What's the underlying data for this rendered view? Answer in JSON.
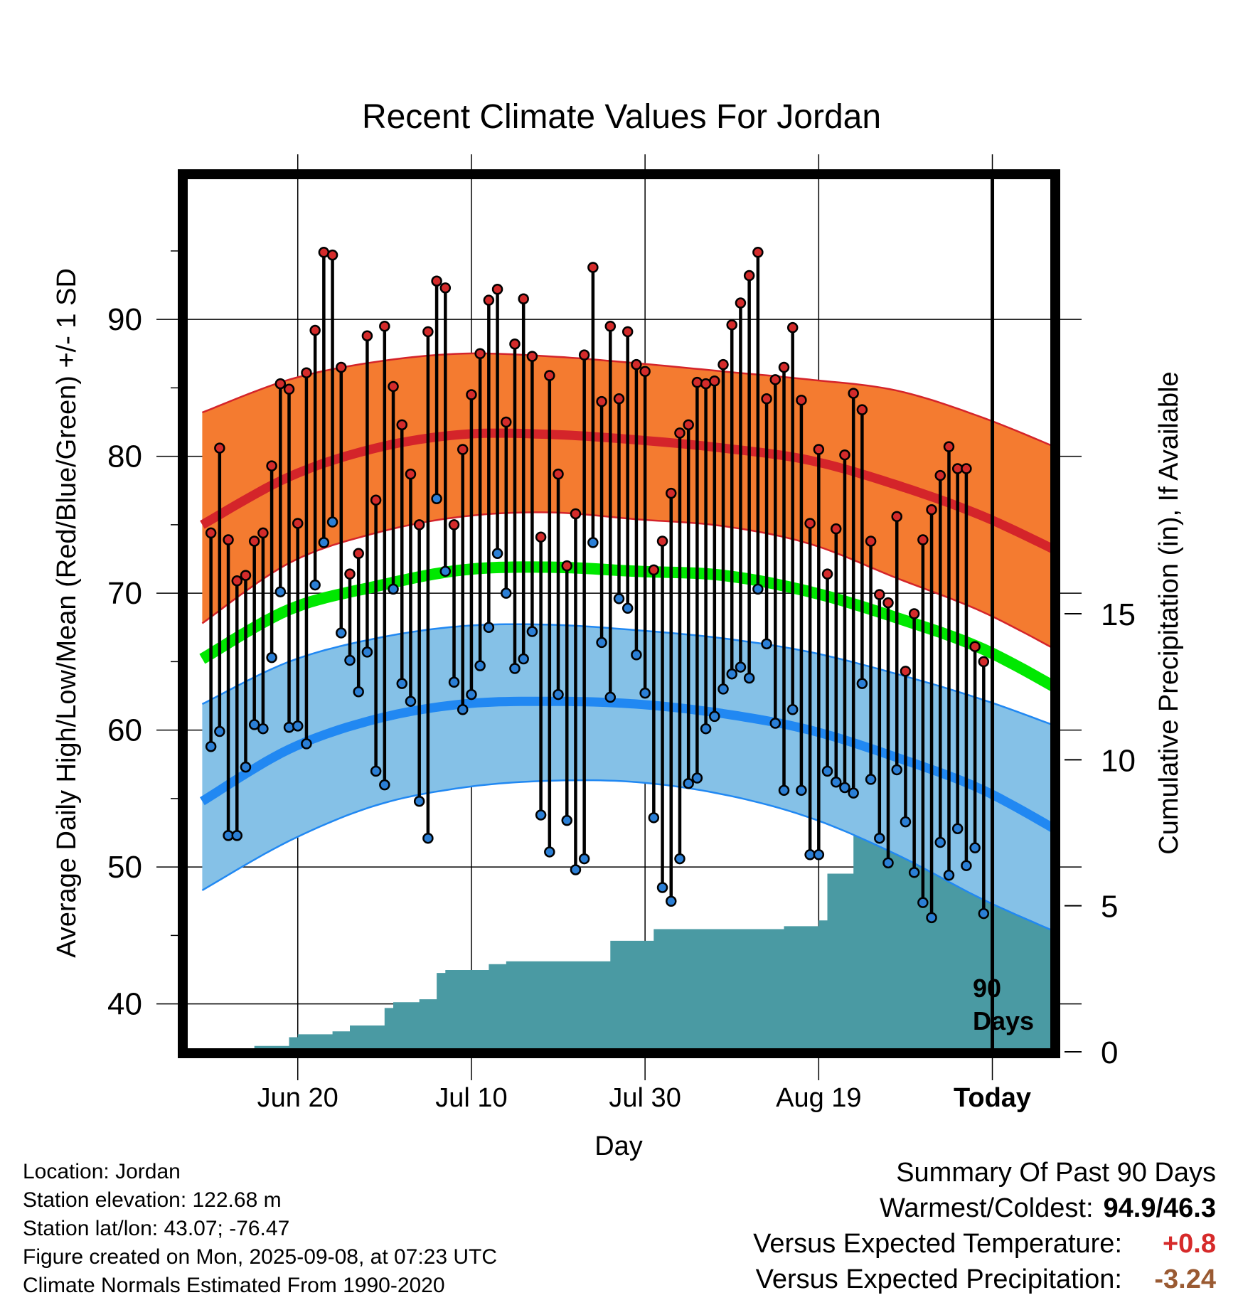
{
  "chart_data": {
    "type": "line",
    "title": "Recent Climate Values For Jordan",
    "xlabel": "Day",
    "ylabel": "Average Daily High/Low/Mean (Red/Blue/Green) +/- 1 SD",
    "y2label": "Cumulative Precipitation (in), If Available",
    "xlim": [
      -13,
      87
    ],
    "ylim": [
      36.5,
      100.5
    ],
    "y2lim": [
      0,
      30
    ],
    "x_ticks": [
      {
        "x": 0,
        "label": "Jun 20"
      },
      {
        "x": 20,
        "label": "Jul 10"
      },
      {
        "x": 40,
        "label": "Jul 30"
      },
      {
        "x": 60,
        "label": "Aug 19"
      },
      {
        "x": 80,
        "label": "Today"
      }
    ],
    "y_ticks": [
      40,
      50,
      60,
      70,
      80,
      90
    ],
    "y2_ticks": [
      0,
      5,
      10,
      15
    ],
    "grid": true,
    "today_marker": {
      "x": 80,
      "label_line1": "90",
      "label_line2": "Days"
    },
    "normals": {
      "x": [
        -11,
        -1,
        9,
        19,
        29,
        39,
        49,
        59,
        69,
        79,
        89
      ],
      "high_mean": [
        75.0,
        78.5,
        80.6,
        81.6,
        81.6,
        81.2,
        80.6,
        79.7,
        77.9,
        75.6,
        72.6
      ],
      "high_upper": [
        83.2,
        85.6,
        86.9,
        87.5,
        87.3,
        86.8,
        86.2,
        85.6,
        84.8,
        82.8,
        80.2
      ],
      "high_lower": [
        67.8,
        72.2,
        74.4,
        75.6,
        75.9,
        75.4,
        74.9,
        73.6,
        71.1,
        68.6,
        65.3
      ],
      "mean_line": [
        65.2,
        68.8,
        70.5,
        71.7,
        71.9,
        71.6,
        71.3,
        70.1,
        68.2,
        65.9,
        62.5
      ],
      "low_mean": [
        54.8,
        58.6,
        60.8,
        61.9,
        62.1,
        61.9,
        61.2,
        60.0,
        58.0,
        55.6,
        52.1
      ],
      "low_upper": [
        61.9,
        65.0,
        66.7,
        67.6,
        67.7,
        67.3,
        66.7,
        65.7,
        64.1,
        62.2,
        59.9
      ],
      "low_lower": [
        48.3,
        51.9,
        54.5,
        55.8,
        56.3,
        56.2,
        55.3,
        53.6,
        50.9,
        47.6,
        44.8
      ]
    },
    "series": [
      {
        "name": "High",
        "x": [
          -10,
          -9,
          -8,
          -7,
          -6,
          -5,
          -4,
          -3,
          -2,
          -1,
          0,
          1,
          2,
          3,
          4,
          5,
          6,
          7,
          8,
          9,
          10,
          11,
          12,
          13,
          14,
          15,
          16,
          17,
          18,
          19,
          20,
          21,
          22,
          23,
          24,
          25,
          26,
          27,
          28,
          29,
          30,
          31,
          32,
          33,
          34,
          35,
          36,
          37,
          38,
          39,
          40,
          41,
          42,
          43,
          44,
          45,
          46,
          47,
          48,
          49,
          50,
          51,
          52,
          53,
          54,
          55,
          56,
          57,
          58,
          59,
          60,
          61,
          62,
          63,
          64,
          65,
          66,
          67,
          68,
          69,
          70,
          71,
          72,
          73,
          74,
          75,
          76,
          77,
          78,
          79
        ],
        "values": [
          74.4,
          80.6,
          73.9,
          70.9,
          71.3,
          73.8,
          74.4,
          79.3,
          85.3,
          84.9,
          75.1,
          86.1,
          89.2,
          94.9,
          94.7,
          86.5,
          71.4,
          72.9,
          88.8,
          76.8,
          89.5,
          85.1,
          82.3,
          78.7,
          75.0,
          89.1,
          92.8,
          92.3,
          75.0,
          80.5,
          84.5,
          87.5,
          91.4,
          92.2,
          82.5,
          88.2,
          91.5,
          87.3,
          74.1,
          85.9,
          78.7,
          72.0,
          75.8,
          87.4,
          93.8,
          84.0,
          89.5,
          84.2,
          89.1,
          86.7,
          86.2,
          71.7,
          73.8,
          77.3,
          81.7,
          82.3,
          85.4,
          85.3,
          85.5,
          86.7,
          89.6,
          91.2,
          93.2,
          94.9,
          84.2,
          85.6,
          86.5,
          89.4,
          84.1,
          75.1,
          80.5,
          71.4,
          74.7,
          80.1,
          84.6,
          83.4,
          73.8,
          69.9,
          69.3,
          75.6,
          64.3,
          68.5,
          73.9,
          76.1,
          78.6,
          80.7,
          79.1,
          79.1,
          66.1,
          65.0
        ]
      },
      {
        "name": "Low",
        "x": [
          -10,
          -9,
          -8,
          -7,
          -6,
          -5,
          -4,
          -3,
          -2,
          -1,
          0,
          1,
          2,
          3,
          4,
          5,
          6,
          7,
          8,
          9,
          10,
          11,
          12,
          13,
          14,
          15,
          16,
          17,
          18,
          19,
          20,
          21,
          22,
          23,
          24,
          25,
          26,
          27,
          28,
          29,
          30,
          31,
          32,
          33,
          34,
          35,
          36,
          37,
          38,
          39,
          40,
          41,
          42,
          43,
          44,
          45,
          46,
          47,
          48,
          49,
          50,
          51,
          52,
          53,
          54,
          55,
          56,
          57,
          58,
          59,
          60,
          61,
          62,
          63,
          64,
          65,
          66,
          67,
          68,
          69,
          70,
          71,
          72,
          73,
          74,
          75,
          76,
          77,
          78,
          79
        ],
        "values": [
          58.8,
          59.9,
          52.3,
          52.3,
          57.3,
          60.4,
          60.1,
          65.3,
          70.1,
          60.2,
          60.3,
          59.0,
          70.6,
          73.7,
          75.2,
          67.1,
          65.1,
          62.8,
          65.7,
          57.0,
          56.0,
          70.3,
          63.4,
          62.1,
          54.8,
          52.1,
          76.9,
          71.6,
          63.5,
          61.5,
          62.6,
          64.7,
          67.5,
          72.9,
          70.0,
          64.5,
          65.2,
          67.2,
          53.8,
          51.1,
          62.6,
          53.4,
          49.8,
          50.6,
          73.7,
          66.4,
          62.4,
          69.6,
          68.9,
          65.5,
          62.7,
          53.6,
          48.5,
          47.5,
          50.6,
          56.1,
          56.5,
          60.1,
          61.0,
          63.0,
          64.1,
          64.6,
          63.8,
          70.3,
          66.3,
          60.5,
          55.6,
          61.5,
          55.6,
          50.9,
          50.9,
          57.0,
          56.2,
          55.8,
          55.4,
          63.4,
          56.4,
          52.1,
          50.3,
          57.1,
          53.3,
          49.6,
          47.4,
          46.3,
          51.8,
          49.4,
          52.8,
          50.1,
          51.4,
          46.6
        ]
      }
    ],
    "precipitation": {
      "x": [
        -10,
        -6,
        -5,
        -3,
        -1,
        0,
        2,
        4,
        5,
        6,
        8,
        10,
        11,
        13,
        14,
        15,
        16,
        17,
        18,
        22,
        24,
        27,
        35,
        36,
        40,
        41,
        54,
        56,
        58,
        60,
        61,
        63,
        64,
        65,
        66,
        67,
        68,
        69,
        70,
        72,
        74,
        75,
        76,
        77,
        78,
        79,
        80,
        89
      ],
      "values": [
        0.1,
        0.1,
        0.2,
        0.2,
        0.5,
        0.6,
        0.6,
        0.7,
        0.7,
        0.9,
        0.9,
        1.5,
        1.7,
        1.7,
        1.8,
        1.8,
        2.7,
        2.8,
        2.8,
        3.0,
        3.1,
        3.1,
        3.1,
        3.8,
        3.8,
        4.2,
        4.2,
        4.3,
        4.3,
        4.5,
        6.1,
        6.1,
        7.5,
        7.7,
        8.0,
        8.2,
        8.6,
        8.6,
        8.9,
        8.9,
        8.9,
        8.9,
        9.1,
        9.2,
        9.3,
        9.4,
        9.4,
        9.4
      ]
    },
    "colors": {
      "high_band": "#f47b30",
      "high_line": "#d4242a",
      "low_band": "#85c1e7",
      "low_line": "#2188f2",
      "mean_line": "#00e800",
      "precip": "#4a9aa3",
      "high_dot": "#d42b2b",
      "low_dot": "#2b7fd6"
    }
  },
  "info": {
    "location": "Location: Jordan",
    "elevation": "Station elevation: 122.68 m",
    "latlon": "Station lat/lon: 43.07; -76.47",
    "created": "Figure created on Mon, 2025-09-08, at 07:23 UTC",
    "normals": "Climate Normals Estimated From 1990-2020"
  },
  "summary": {
    "title": "Summary Of Past 90 Days",
    "warm_label": "Warmest/Coldest:",
    "warm_value": "94.9/46.3",
    "temp_label": "Versus Expected Temperature:",
    "temp_value": "+0.8",
    "precip_label": "Versus Expected Precipitation:",
    "precip_value": "-3.24",
    "temp_color": "#d62a2a",
    "precip_color": "#9a5a32"
  }
}
